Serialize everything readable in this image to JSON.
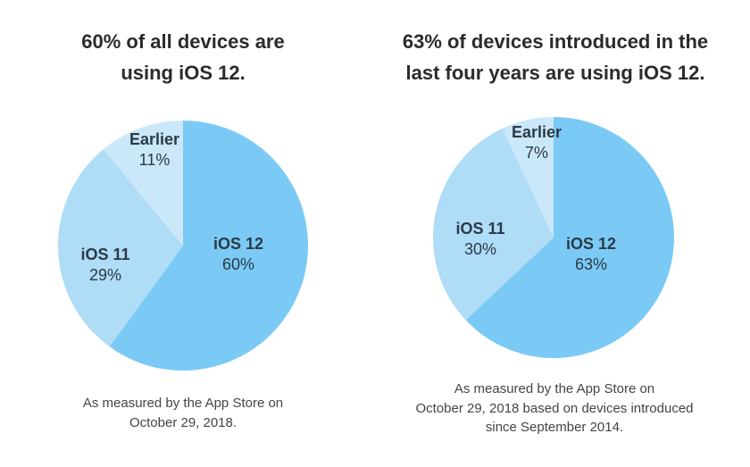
{
  "chart_data": [
    {
      "type": "pie",
      "title": [
        "60% of all devices are",
        "using iOS 12."
      ],
      "caption": [
        "As measured by the App Store on",
        "October 29, 2018."
      ],
      "slices": [
        {
          "label": "iOS 12",
          "value": 60,
          "value_label": "60%",
          "color": "#7bcaf5"
        },
        {
          "label": "iOS 11",
          "value": 29,
          "value_label": "29%",
          "color": "#afdcf7"
        },
        {
          "label": "Earlier",
          "value": 11,
          "value_label": "11%",
          "color": "#cae8f9"
        }
      ]
    },
    {
      "type": "pie",
      "title": [
        "63% of devices introduced in the",
        "last four years are using iOS 12."
      ],
      "caption": [
        "As measured by the App Store on",
        "October 29, 2018 based on devices introduced",
        "since September 2014."
      ],
      "slices": [
        {
          "label": "iOS 12",
          "value": 63,
          "value_label": "63%",
          "color": "#7bcaf5"
        },
        {
          "label": "iOS 11",
          "value": 30,
          "value_label": "30%",
          "color": "#afdcf7"
        },
        {
          "label": "Earlier",
          "value": 7,
          "value_label": "7%",
          "color": "#cae8f9"
        }
      ]
    }
  ]
}
